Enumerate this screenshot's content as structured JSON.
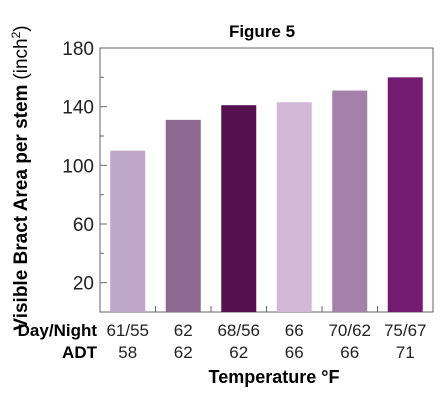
{
  "chart_data": {
    "type": "bar",
    "title": "Figure 5",
    "ylabel_main": "Visible Bract Area per stem",
    "ylabel_unit_prefix": "(inch",
    "ylabel_unit_sup": "2",
    "ylabel_unit_suffix": ")",
    "xlabel": "Temperature °F",
    "ylim": [
      0,
      180
    ],
    "yticks_labeled": [
      20,
      60,
      100,
      140,
      180
    ],
    "yticks_minor": [
      40,
      80,
      120,
      160
    ],
    "row_labels": [
      "Day/Night",
      "ADT"
    ],
    "categories": [
      "61/55",
      "62",
      "68/56",
      "66",
      "70/62",
      "75/67"
    ],
    "adt": [
      "58",
      "62",
      "62",
      "66",
      "66",
      "71"
    ],
    "values": [
      110,
      131,
      141,
      143,
      151,
      160
    ],
    "colors": [
      "#bea6c6",
      "#8d6891",
      "#54104f",
      "#d2b8d6",
      "#a580ab",
      "#741a70"
    ],
    "grid": false,
    "legend": "none"
  }
}
